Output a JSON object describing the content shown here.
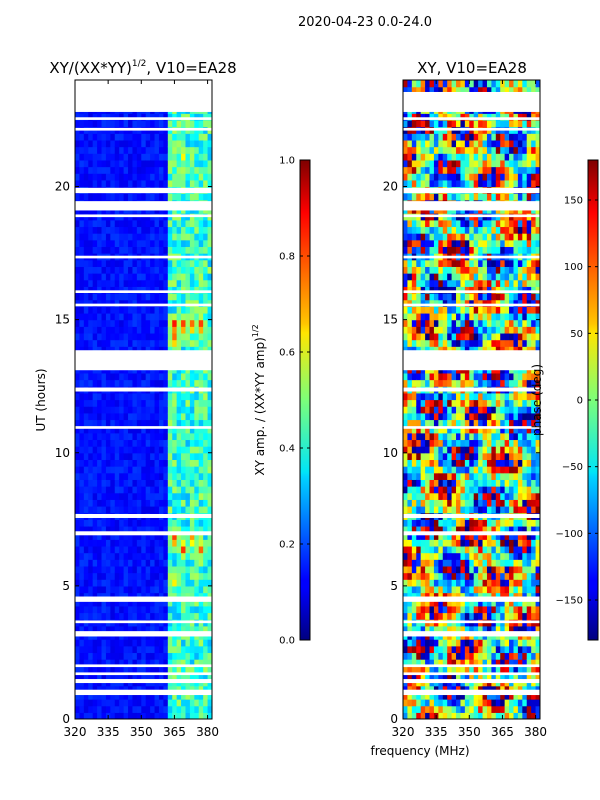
{
  "figure": {
    "suptitle": "2020-04-23 0.0-24.0",
    "xlabel": "frequency (MHz)"
  },
  "chart_data": [
    {
      "type": "heatmap",
      "title": "XY/(XX*YY)",
      "title_sup": "1/2",
      "title_suffix": ", V10=EA28",
      "xlabel": "",
      "ylabel": "UT (hours)",
      "xlim": [
        320,
        382
      ],
      "ylim": [
        0,
        24
      ],
      "xticks": [
        320,
        335,
        350,
        365,
        380
      ],
      "yticks": [
        0,
        5,
        10,
        15,
        20
      ],
      "colorbar": {
        "label": "XY amp. / (XX*YY amp)",
        "label_sup": "1/2",
        "range": [
          0.0,
          1.0
        ],
        "ticks": [
          "0.0",
          "0.2",
          "0.4",
          "0.6",
          "0.8",
          "1.0"
        ],
        "colormap": "jet"
      },
      "bright_channels_mhz": [
        364,
        365,
        368,
        369,
        372,
        373,
        376,
        377,
        379,
        380
      ],
      "hotspots": [
        {
          "f": 365,
          "t": 14.8,
          "v": 0.85
        },
        {
          "f": 369,
          "t": 14.8,
          "v": 0.8
        },
        {
          "f": 373,
          "t": 14.8,
          "v": 0.75
        },
        {
          "f": 377,
          "t": 14.8,
          "v": 0.8
        },
        {
          "f": 365,
          "t": 14.3,
          "v": 0.75
        },
        {
          "f": 365,
          "t": 6.8,
          "v": 0.8
        },
        {
          "f": 369,
          "t": 6.4,
          "v": 0.75
        },
        {
          "f": 373,
          "t": 6.8,
          "v": 0.7
        },
        {
          "f": 377,
          "t": 6.4,
          "v": 0.7
        },
        {
          "f": 369,
          "t": 21.1,
          "v": 0.55
        },
        {
          "f": 365,
          "t": 5.2,
          "v": 0.6
        }
      ],
      "flagged_ut_ranges": [
        [
          0.9,
          1.1
        ],
        [
          1.35,
          1.5
        ],
        [
          1.65,
          1.75
        ],
        [
          1.95,
          2.05
        ],
        [
          3.1,
          3.3
        ],
        [
          3.6,
          3.7
        ],
        [
          4.4,
          4.6
        ],
        [
          6.9,
          7.05
        ],
        [
          7.55,
          7.7
        ],
        [
          10.9,
          11.0
        ],
        [
          12.3,
          12.45
        ],
        [
          13.1,
          13.85
        ],
        [
          15.5,
          15.6
        ],
        [
          16.0,
          16.1
        ],
        [
          17.3,
          17.4
        ],
        [
          18.85,
          18.95
        ],
        [
          19.1,
          19.45
        ],
        [
          19.75,
          19.95
        ],
        [
          22.1,
          22.2
        ],
        [
          22.5,
          22.6
        ],
        [
          22.8,
          24.0
        ]
      ]
    },
    {
      "type": "heatmap",
      "title": "XY, V10=EA28",
      "xlabel": "",
      "ylabel": "",
      "xlim": [
        320,
        382
      ],
      "ylim": [
        0,
        24
      ],
      "xticks": [
        320,
        335,
        350,
        365,
        380
      ],
      "yticks": [
        0,
        5,
        10,
        15,
        20
      ],
      "colorbar": {
        "label": "phase (deg)",
        "range": [
          -180,
          180
        ],
        "ticks": [
          "−150",
          "−100",
          "−50",
          "0",
          "50",
          "100",
          "150"
        ],
        "tick_values": [
          -150,
          -100,
          -50,
          0,
          50,
          100,
          150
        ],
        "colormap": "jet"
      },
      "flagged_ut_ranges": [
        [
          0.9,
          1.1
        ],
        [
          1.35,
          1.5
        ],
        [
          1.65,
          1.75
        ],
        [
          1.95,
          2.05
        ],
        [
          3.1,
          3.3
        ],
        [
          3.6,
          3.7
        ],
        [
          4.4,
          4.6
        ],
        [
          6.9,
          7.05
        ],
        [
          7.55,
          7.7
        ],
        [
          10.9,
          11.0
        ],
        [
          12.3,
          12.45
        ],
        [
          13.1,
          13.85
        ],
        [
          15.5,
          15.6
        ],
        [
          16.0,
          16.1
        ],
        [
          17.3,
          17.4
        ],
        [
          18.85,
          18.95
        ],
        [
          19.1,
          19.45
        ],
        [
          19.75,
          19.95
        ],
        [
          22.1,
          22.2
        ],
        [
          22.5,
          22.6
        ],
        [
          22.8,
          23.55
        ]
      ]
    }
  ]
}
